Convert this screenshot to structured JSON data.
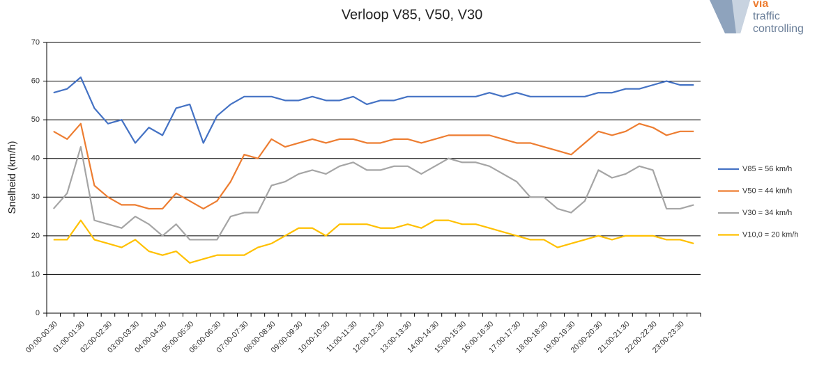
{
  "chart_data": {
    "type": "line",
    "title": "Verloop V85, V50, V30",
    "y_label": "Snelheid (km/h)",
    "logo": {
      "brand": "via",
      "line1": "traffic",
      "line2": "controlling"
    },
    "categories": [
      "00:00-00:30",
      null,
      "01:00-01:30",
      null,
      "02:00-02:30",
      null,
      "03:00-03:30",
      null,
      "04:00-04:30",
      null,
      "05:00-05:30",
      null,
      "06:00-06:30",
      null,
      "07:00-07:30",
      null,
      "08:00-08:30",
      null,
      "09:00-09:30",
      null,
      "10:00-10:30",
      null,
      "11:00-11:30",
      null,
      "12:00-12:30",
      null,
      "13:00-13:30",
      null,
      "14:00-14:30",
      null,
      "15:00-15:30",
      null,
      "16:00-16:30",
      null,
      "17:00-17:30",
      null,
      "18:00-18:30",
      null,
      "19:00-19:30",
      null,
      "20:00-20:30",
      null,
      "21:00-21:30",
      null,
      "22:00-22:30",
      null,
      "23:00-23:30",
      null
    ],
    "series": [
      {
        "name": "V85 = 56 km/h",
        "color": "#4472c4",
        "values": [
          57,
          58,
          61,
          53,
          49,
          50,
          44,
          48,
          46,
          53,
          54,
          44,
          51,
          54,
          56,
          56,
          56,
          55,
          55,
          56,
          55,
          55,
          56,
          54,
          55,
          55,
          56,
          56,
          56,
          56,
          56,
          56,
          57,
          56,
          57,
          56,
          56,
          56,
          56,
          56,
          57,
          57,
          58,
          58,
          59,
          60,
          59,
          59
        ]
      },
      {
        "name": "V50 = 44 km/h",
        "color": "#ed7d31",
        "values": [
          47,
          45,
          49,
          33,
          30,
          28,
          28,
          27,
          27,
          31,
          29,
          27,
          29,
          34,
          41,
          40,
          45,
          43,
          44,
          45,
          44,
          45,
          45,
          44,
          44,
          45,
          45,
          44,
          45,
          46,
          46,
          46,
          46,
          45,
          44,
          44,
          43,
          42,
          41,
          44,
          47,
          46,
          47,
          49,
          48,
          46,
          47,
          47
        ]
      },
      {
        "name": "V30 = 34 km/h",
        "color": "#a5a5a5",
        "values": [
          27,
          31,
          43,
          24,
          23,
          22,
          25,
          23,
          20,
          23,
          19,
          19,
          19,
          25,
          26,
          26,
          33,
          34,
          36,
          37,
          36,
          38,
          39,
          37,
          37,
          38,
          38,
          36,
          38,
          40,
          39,
          39,
          38,
          36,
          34,
          30,
          30,
          27,
          26,
          29,
          37,
          35,
          36,
          38,
          37,
          27,
          27,
          28
        ]
      },
      {
        "name": "V10,0 = 20 km/h",
        "color": "#ffc000",
        "values": [
          19,
          19,
          24,
          19,
          18,
          17,
          19,
          16,
          15,
          16,
          13,
          14,
          15,
          15,
          15,
          17,
          18,
          20,
          22,
          22,
          20,
          23,
          23,
          23,
          22,
          22,
          23,
          22,
          24,
          24,
          23,
          23,
          22,
          21,
          20,
          19,
          19,
          17,
          18,
          19,
          20,
          19,
          20,
          20,
          20,
          19,
          19,
          18
        ]
      }
    ],
    "ylim": [
      0,
      70
    ],
    "yticks": [
      0,
      10,
      20,
      30,
      40,
      50,
      60,
      70
    ],
    "grid": true,
    "legend": "right"
  }
}
